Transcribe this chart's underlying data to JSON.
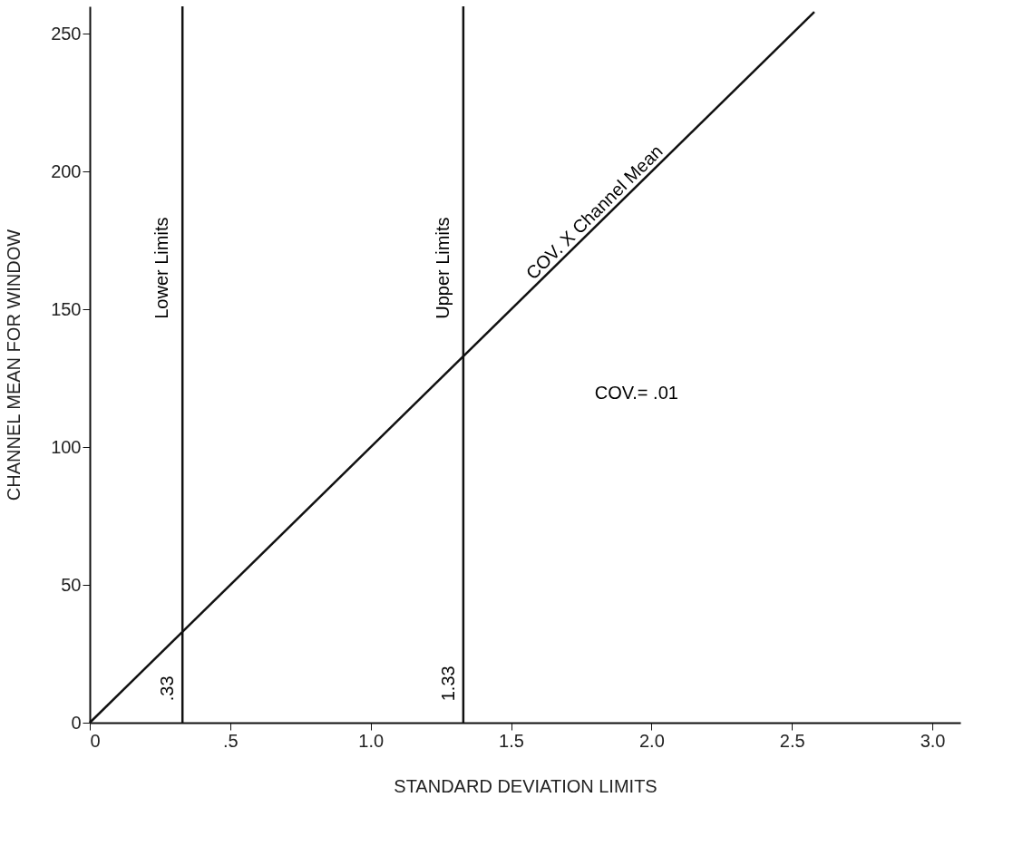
{
  "chart_data": {
    "type": "line",
    "xlabel": "STANDARD DEVIATION LIMITS",
    "ylabel": "CHANNEL MEAN FOR WINDOW",
    "series": [
      {
        "color": "#111111",
        "x": [
          0,
          2.58
        ],
        "values": [
          0,
          258
        ]
      }
    ],
    "xlim": [
      0,
      3.1
    ],
    "ylim": [
      0,
      260
    ],
    "xticks": [
      0,
      {
        "value": 0.5,
        "label": ".5"
      },
      {
        "value": 1,
        "label": "1.0"
      },
      {
        "value": 1.5,
        "label": "1.5"
      },
      {
        "value": 2,
        "label": "2.0"
      },
      {
        "value": 2.5,
        "label": "2.5"
      },
      {
        "value": 3,
        "label": "3.0"
      }
    ],
    "yticks": [
      0,
      50,
      100,
      150,
      200,
      250
    ],
    "ref_lines": [
      {
        "axis": "x",
        "value": 0.33,
        "label": ".33",
        "color": "#111111"
      },
      {
        "axis": "x",
        "value": 1.33,
        "label": "1.33",
        "color": "#111111"
      }
    ],
    "annotations": [
      {
        "text": "Lower Limits",
        "x": 0.33,
        "y": 165
      },
      {
        "text": "Upper Limits",
        "x": 1.33,
        "y": 165
      },
      {
        "text": "COV. X Channel Mean",
        "x": 1.85,
        "y": 185
      },
      "COV.= .01"
    ],
    "grid": false,
    "marker": "none",
    "line_style": "solid"
  }
}
